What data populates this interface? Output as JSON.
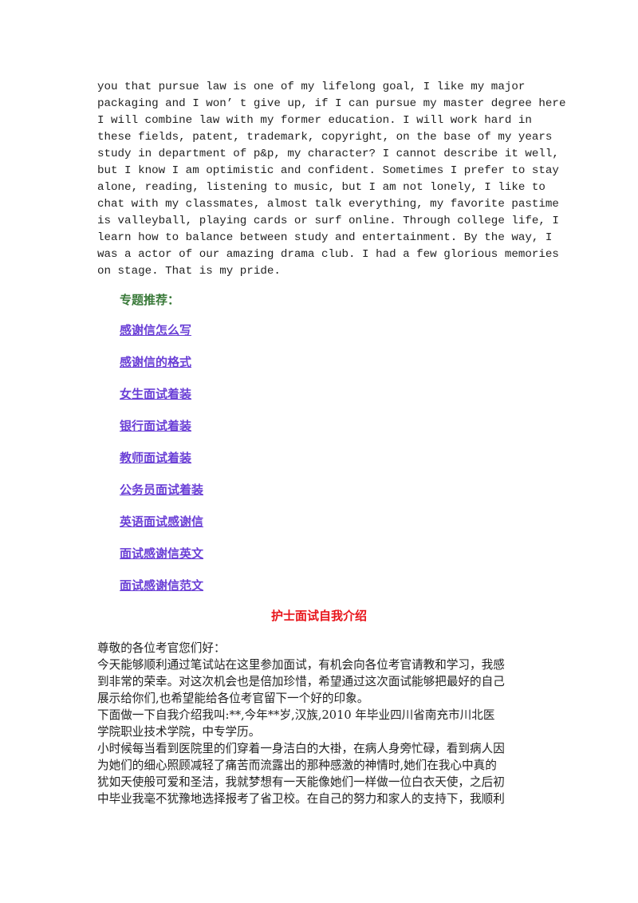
{
  "english_paragraph": {
    "lines": [
      "you that pursue law is one of my lifelong goal, I like my major",
      "packaging and I won’ t give up, if I can pursue my master degree here",
      "I will combine law with my former education. I will work hard in",
      "these fields, patent, trademark, copyright, on the base of my years",
      "study in department of p&p, my character? I cannot describe it well,",
      "but I know I am optimistic and confident. Sometimes I prefer to stay",
      "alone, reading, listening to music, but I am not lonely, I like to",
      "chat with my classmates, almost talk everything, my favorite pastime",
      "is valleyball, playing cards or surf online. Through college life, I",
      "learn how to balance between study and entertainment. By the way, I",
      "was a actor of our amazing drama club. I had a few glorious memories",
      "on stage. That is my pride."
    ]
  },
  "topics": {
    "label": "专题推荐：",
    "links": [
      "感谢信怎么写",
      "感谢信的格式",
      "女生面试着装",
      "银行面试着装",
      "教师面试着装",
      "公务员面试着装",
      "英语面试感谢信",
      "面试感谢信英文",
      "面试感谢信范文"
    ]
  },
  "article": {
    "title": "护士面试自我介绍",
    "lines": [
      "尊敬的各位考官您们好：",
      "今天能够顺利通过笔试站在这里参加面试，有机会向各位考官请教和学习，我感",
      "到非常的荣幸。对这次机会也是倍加珍惜，希望通过这次面试能够把最好的自己",
      "展示给你们,也希望能给各位考官留下一个好的印象。",
      "下面做一下自我介绍我叫:**,今年**岁,汉族,2010 年毕业四川省南充市川北医",
      "学院职业技术学院，中专学历。",
      "小时候每当看到医院里的们穿着一身洁白的大褂，在病人身旁忙碌，看到病人因",
      "为她们的细心照顾减轻了痛苦而流露出的那种感激的神情时,她们在我心中真的",
      "犹如天使般可爱和圣洁，我就梦想有一天能像她们一样做一位白衣天使，之后初",
      "中毕业我毫不犹豫地选择报考了省卫校。在自己的努力和家人的支持下，我顺利"
    ]
  },
  "colors": {
    "topic_label": "#3a7a3a",
    "link": "#6a3fd6",
    "title": "#e8141a",
    "text": "#222222"
  }
}
